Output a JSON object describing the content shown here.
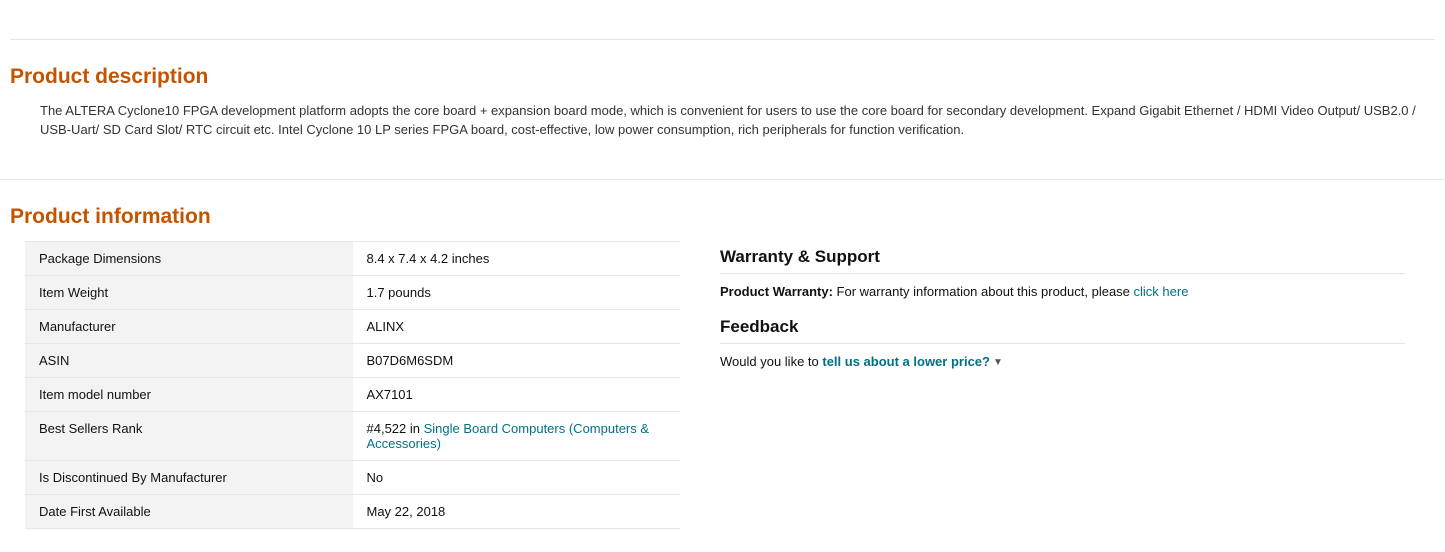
{
  "description": {
    "title": "Product description",
    "body": "The ALTERA Cyclone10 FPGA development platform adopts the core board + expansion board mode, which is convenient for users to use the core board for secondary development. Expand Gigabit Ethernet / HDMI Video Output/ USB2.0 / USB-Uart/ SD Card Slot/ RTC circuit etc. Intel Cyclone 10 LP series FPGA board, cost-effective, low power consumption, rich peripherals for function verification."
  },
  "information": {
    "title": "Product information",
    "rows": [
      {
        "label": "Package Dimensions",
        "value": "8.4 x 7.4 x 4.2 inches"
      },
      {
        "label": "Item Weight",
        "value": "1.7 pounds"
      },
      {
        "label": "Manufacturer",
        "value": "ALINX"
      },
      {
        "label": "ASIN",
        "value": "B07D6M6SDM"
      },
      {
        "label": "Item model number",
        "value": "AX7101"
      },
      {
        "label": "Best Sellers Rank",
        "value_prefix": "#4,522 in ",
        "value_link": "Single Board Computers (Computers & Accessories)"
      },
      {
        "label": "Is Discontinued By Manufacturer",
        "value": "No"
      },
      {
        "label": "Date First Available",
        "value": "May 22, 2018"
      }
    ]
  },
  "warranty": {
    "heading": "Warranty & Support",
    "label": "Product Warranty:",
    "text": " For warranty information about this product, please ",
    "link": "click here"
  },
  "feedback": {
    "heading": "Feedback",
    "prompt": "Would you like to ",
    "link": "tell us about a lower price?"
  }
}
